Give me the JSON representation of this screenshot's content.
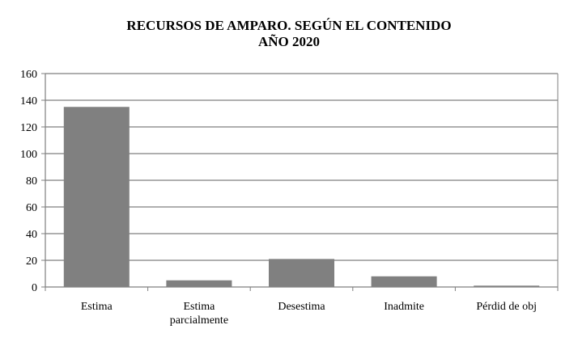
{
  "chart_data": {
    "type": "bar",
    "title_lines": [
      "RECURSOS DE AMPARO. SEGÚN EL CONTENIDO",
      "AÑO 2020"
    ],
    "categories": [
      [
        "Estima"
      ],
      [
        "Estima",
        "parcialmente"
      ],
      [
        "Desestima"
      ],
      [
        "Inadmite"
      ],
      [
        "Pérdid de obj"
      ]
    ],
    "values": [
      135,
      5,
      21,
      8,
      1
    ],
    "ylim": [
      0,
      160
    ],
    "yticks": [
      0,
      20,
      40,
      60,
      80,
      100,
      120,
      140,
      160
    ],
    "grid": true,
    "legend": "none",
    "colors": {
      "bar": "#808080",
      "grid": "#7f7f7f",
      "axis": "#7f7f7f"
    }
  }
}
